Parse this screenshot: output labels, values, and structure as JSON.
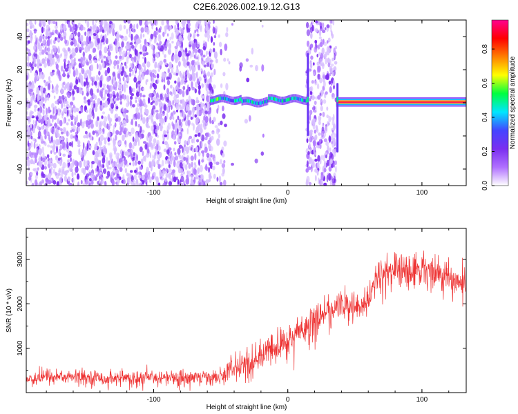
{
  "title": "C2E6.2026.002.19.12.G13",
  "chart_data": [
    {
      "type": "heatmap",
      "xlabel": "Height of straight line (km)",
      "ylabel": "Frequency (Hz)",
      "xlim": [
        -195,
        133
      ],
      "ylim": [
        -50,
        50
      ],
      "xticks": [
        -100,
        0,
        100
      ],
      "yticks": [
        -40,
        -20,
        0,
        20,
        40
      ],
      "colorbar": {
        "label": "Normalized spectral amplitude",
        "range": [
          0.0,
          0.97
        ],
        "ticks": [
          0.0,
          0.2,
          0.4,
          0.6,
          0.8
        ],
        "colormap": [
          "#ffffff",
          "#b070ff",
          "#7a2ff0",
          "#4444ff",
          "#00e6ff",
          "#00ff40",
          "#ffff00",
          "#ff8000",
          "#ff0000",
          "#ff0090"
        ]
      },
      "regions": [
        {
          "x": [
            -195,
            -55
          ],
          "pattern": "broadband noise",
          "level": 0.15
        },
        {
          "x": [
            -58,
            14
          ],
          "pattern": "carrier near 2 Hz with drift",
          "peak": 0.5
        },
        {
          "x": [
            14,
            36
          ],
          "pattern": "broadband noise with spikes at 15 km and 37 km",
          "level": 0.15
        },
        {
          "x": [
            36,
            133
          ],
          "pattern": "clean carrier at 0.5 Hz",
          "peak": 0.95
        }
      ]
    },
    {
      "type": "line",
      "xlabel": "Height of straight line (km)",
      "ylabel": "SNR (10 * v/v)",
      "xlim": [
        -195,
        133
      ],
      "ylim": [
        0,
        3700
      ],
      "xticks": [
        -100,
        0,
        100
      ],
      "yticks": [
        1000,
        2000,
        3000
      ],
      "color": "#ee3333",
      "series": [
        {
          "x": [
            -195,
            -180,
            -160,
            -140,
            -120,
            -100,
            -80,
            -60,
            -50,
            -42,
            -30,
            -20,
            -10,
            0,
            10,
            20,
            30,
            40,
            50,
            60,
            65,
            70,
            80,
            90,
            100,
            110,
            120,
            133
          ],
          "y_mean": [
            300,
            380,
            350,
            330,
            330,
            330,
            350,
            350,
            360,
            550,
            700,
            820,
            1000,
            1150,
            1420,
            1650,
            1830,
            2000,
            1950,
            2000,
            2550,
            2700,
            2780,
            2800,
            2780,
            2730,
            2600,
            2400
          ],
          "y_spread": [
            130,
            160,
            140,
            140,
            140,
            140,
            150,
            150,
            150,
            230,
            260,
            290,
            320,
            340,
            330,
            320,
            300,
            290,
            290,
            260,
            300,
            330,
            340,
            340,
            340,
            320,
            300,
            300
          ]
        }
      ]
    }
  ]
}
